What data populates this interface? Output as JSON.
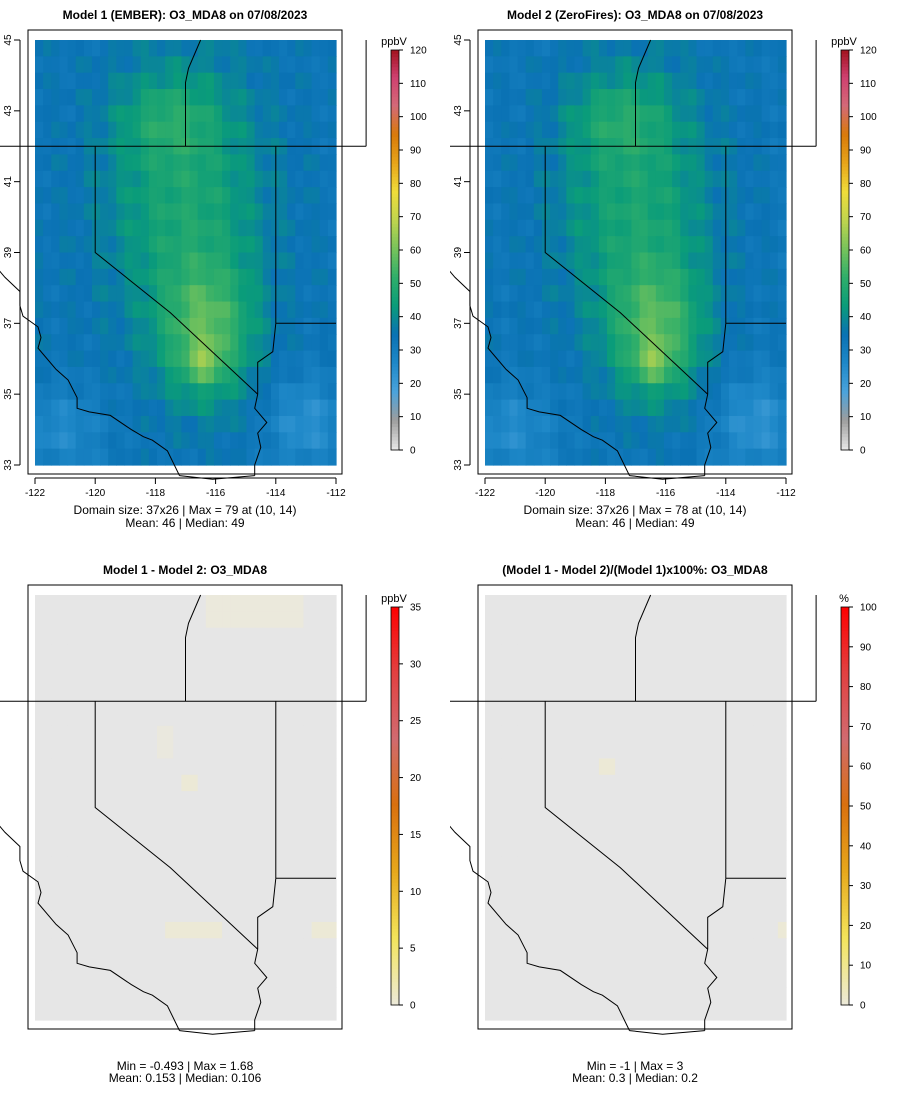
{
  "chart_data": [
    {
      "type": "heatmap",
      "title": "Model 1 (EMBER): O3_MDA8 on 07/08/2023",
      "xticks": [
        "-122",
        "-120",
        "-118",
        "-116",
        "-114",
        "-112"
      ],
      "yticks": [
        "33",
        "35",
        "37",
        "39",
        "41",
        "43",
        "45"
      ],
      "xlim": [
        -122,
        -112
      ],
      "ylim": [
        33,
        45
      ],
      "colorbar_unit": "ppbV",
      "colorbar_ticks": [
        "0",
        "10",
        "20",
        "30",
        "40",
        "50",
        "60",
        "70",
        "80",
        "90",
        "100",
        "110",
        "120"
      ],
      "colorbar_range": [
        0,
        120
      ],
      "stats_line1": "Domain size: 37x26 | Max = 79 at (10, 14)",
      "stats_line2": "Mean: 46 |  Median: 49",
      "mean": 46,
      "median": 49,
      "max": 79
    },
    {
      "type": "heatmap",
      "title": "Model 2 (ZeroFires): O3_MDA8 on 07/08/2023",
      "xticks": [
        "-122",
        "-120",
        "-118",
        "-116",
        "-114",
        "-112"
      ],
      "yticks": [
        "33",
        "35",
        "37",
        "39",
        "41",
        "43",
        "45"
      ],
      "xlim": [
        -122,
        -112
      ],
      "ylim": [
        33,
        45
      ],
      "colorbar_unit": "ppbV",
      "colorbar_ticks": [
        "0",
        "10",
        "20",
        "30",
        "40",
        "50",
        "60",
        "70",
        "80",
        "90",
        "100",
        "110",
        "120"
      ],
      "colorbar_range": [
        0,
        120
      ],
      "stats_line1": "Domain size: 37x26 | Max = 78 at (10, 14)",
      "stats_line2": "Mean: 46 |  Median: 49",
      "mean": 46,
      "median": 49,
      "max": 78
    },
    {
      "type": "heatmap",
      "title": "Model 1 - Model 2: O3_MDA8",
      "colorbar_unit": "ppbV",
      "colorbar_ticks": [
        "0",
        "5",
        "10",
        "15",
        "20",
        "25",
        "30",
        "35"
      ],
      "colorbar_range": [
        0,
        35
      ],
      "stats_line1": "Min = -0.493 | Max = 1.68",
      "stats_line2": "Mean: 0.153 |  Median: 0.106",
      "min": -0.493,
      "max": 1.68,
      "mean": 0.153,
      "median": 0.106
    },
    {
      "type": "heatmap",
      "title": "(Model 1 - Model 2)/(Model 1)x100%: O3_MDA8",
      "colorbar_unit": "%",
      "colorbar_ticks": [
        "0",
        "10",
        "20",
        "30",
        "40",
        "50",
        "60",
        "70",
        "80",
        "90",
        "100"
      ],
      "colorbar_range": [
        0,
        100
      ],
      "stats_line1": "Min = -1 | Max = 3",
      "stats_line2": "Mean: 0.3 |  Median: 0.2",
      "min": -1,
      "max": 3,
      "mean": 0.3,
      "median": 0.2
    }
  ],
  "colors": {
    "ozone_ramp": [
      "#e6e6e6",
      "#9d9d9d",
      "#4aa3dc",
      "#1e88c8",
      "#0a72b4",
      "#0a9c7a",
      "#2fae6a",
      "#77c35b",
      "#c0d54e",
      "#f0dc3a",
      "#e7a41a",
      "#d87a0a",
      "#d46a78",
      "#cf4070",
      "#a0101a"
    ],
    "diff_ramp": [
      "#ece9d7",
      "#f3e45a",
      "#e6a81c",
      "#d9700e",
      "#d16a70",
      "#e24040",
      "#ff0000"
    ],
    "background_gray": "#e6e6e6"
  }
}
